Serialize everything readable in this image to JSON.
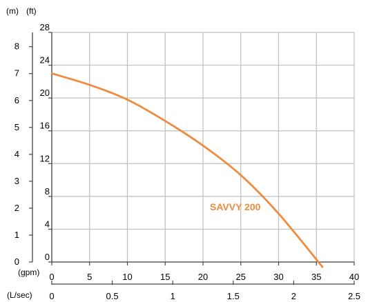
{
  "chart_data": {
    "type": "line",
    "units": {
      "left_outer": "(m)",
      "left_inner": "(ft)",
      "bottom_outer": "(gpm)",
      "bottom_inner": "(L/sec)"
    },
    "axes": {
      "x_gpm": {
        "range": [
          0,
          40
        ],
        "ticks": [
          "0",
          "5",
          "10",
          "15",
          "20",
          "25",
          "30",
          "35",
          "40"
        ]
      },
      "x_lps": {
        "range": [
          0,
          2.5
        ],
        "ticks": [
          "0",
          "0.5",
          "1",
          "1.5",
          "2",
          "2.5"
        ]
      },
      "y_ft": {
        "range": [
          0,
          28
        ],
        "ticks": [
          "0",
          "4",
          "8",
          "12",
          "16",
          "20",
          "24",
          "28"
        ]
      },
      "y_m": {
        "range": [
          0,
          8.53
        ],
        "ticks": [
          "0",
          "1",
          "2",
          "3",
          "4",
          "5",
          "6",
          "7",
          "8"
        ]
      }
    },
    "grid": true,
    "series": [
      {
        "name": "SAVVY 200",
        "color": "#EF8B3F",
        "x_unit": "gpm",
        "y_unit": "ft",
        "x": [
          0,
          5,
          10,
          15,
          20,
          25,
          30,
          35.8
        ],
        "y": [
          23,
          21.6,
          19.8,
          17.2,
          14.2,
          10.6,
          5.9,
          -0.6
        ]
      }
    ]
  }
}
